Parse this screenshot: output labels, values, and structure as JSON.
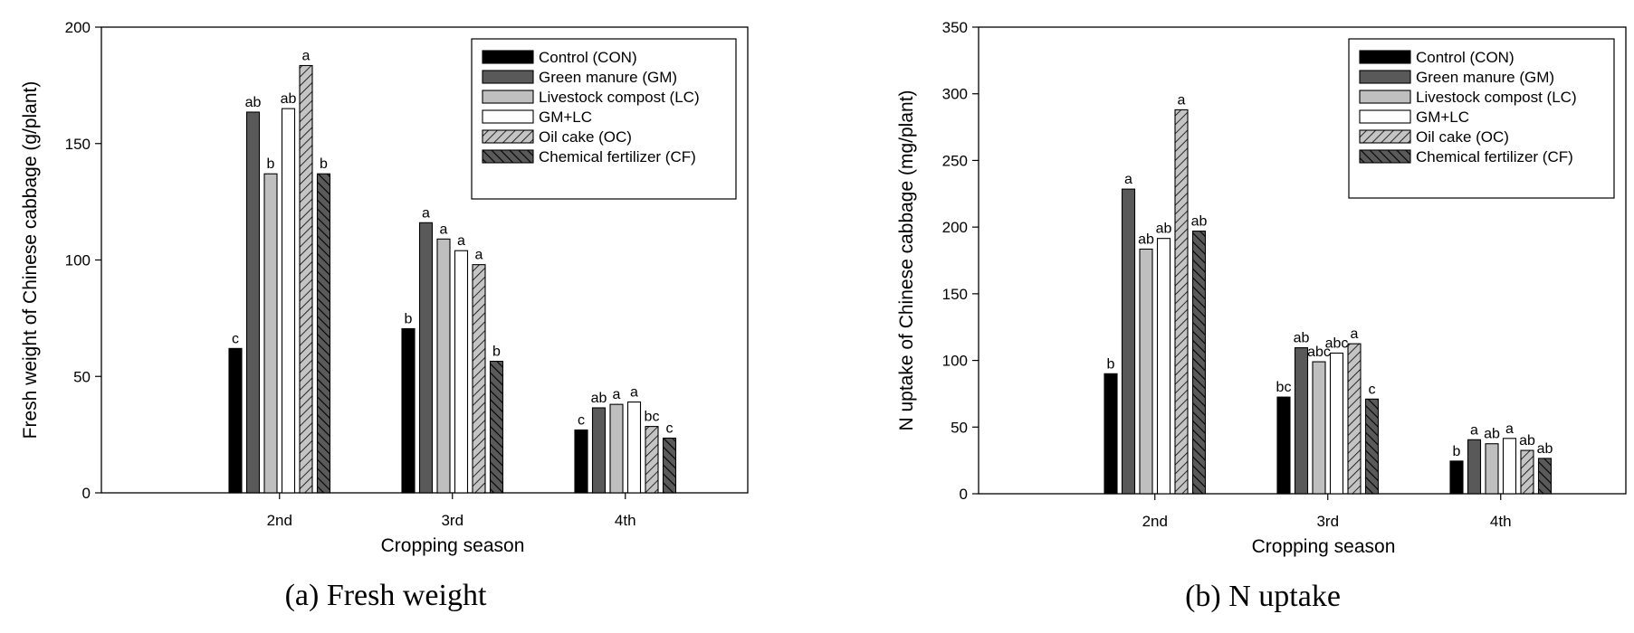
{
  "colors": {
    "CON": "#000000",
    "GM": "#595959",
    "LC": "#bfbfbf",
    "GMLC": "#ffffff",
    "OC": "#bfbfbf",
    "CF": "#595959"
  },
  "chart_data": [
    {
      "type": "bar",
      "caption": "(a) Fresh weight",
      "xlabel": "Cropping season",
      "ylabel": "Fresh weight of Chinese cabbage (g/plant)",
      "ylim": [
        0,
        200
      ],
      "yticks": [
        "0",
        "50",
        "100",
        "150",
        "200"
      ],
      "categories": [
        "2nd",
        "3rd",
        "4th"
      ],
      "legend_position": "top-right",
      "series": [
        {
          "name": "Control (CON)",
          "key": "CON",
          "values": [
            62,
            70.5,
            27
          ],
          "labels": [
            "c",
            "b",
            "c"
          ]
        },
        {
          "name": "Green manure (GM)",
          "key": "GM",
          "values": [
            163.5,
            116,
            36.5
          ],
          "labels": [
            "ab",
            "a",
            "ab"
          ]
        },
        {
          "name": "Livestock compost (LC)",
          "key": "LC",
          "values": [
            137,
            109,
            38
          ],
          "labels": [
            "b",
            "a",
            "a"
          ]
        },
        {
          "name": "GM+LC",
          "key": "GMLC",
          "values": [
            165,
            104,
            39
          ],
          "labels": [
            "ab",
            "a",
            "a"
          ]
        },
        {
          "name": "Oil cake (OC)",
          "key": "OC",
          "values": [
            183.5,
            98,
            28.5
          ],
          "labels": [
            "a",
            "a",
            "bc"
          ]
        },
        {
          "name": "Chemical fertilizer (CF)",
          "key": "CF",
          "values": [
            137,
            56.5,
            23.5
          ],
          "labels": [
            "b",
            "b",
            "c"
          ]
        }
      ]
    },
    {
      "type": "bar",
      "caption": "(b) N uptake",
      "xlabel": "Cropping season",
      "ylabel": "N uptake of Chinese cabbage (mg/plant)",
      "ylim": [
        0,
        350
      ],
      "yticks": [
        "0",
        "50",
        "100",
        "150",
        "200",
        "250",
        "300",
        "350"
      ],
      "categories": [
        "2nd",
        "3rd",
        "4th"
      ],
      "legend_position": "top-right",
      "series": [
        {
          "name": "Control (CON)",
          "key": "CON",
          "values": [
            90,
            72.5,
            24.5
          ],
          "labels": [
            "b",
            "bc",
            "b"
          ]
        },
        {
          "name": "Green manure (GM)",
          "key": "GM",
          "values": [
            228.5,
            109.5,
            40.5
          ],
          "labels": [
            "a",
            "ab",
            "a"
          ]
        },
        {
          "name": "Livestock compost (LC)",
          "key": "LC",
          "values": [
            183.5,
            99,
            37.5
          ],
          "labels": [
            "ab",
            "abc",
            "ab"
          ]
        },
        {
          "name": "GM+LC",
          "key": "GMLC",
          "values": [
            191.5,
            105.5,
            41.5
          ],
          "labels": [
            "ab",
            "abc",
            "a"
          ]
        },
        {
          "name": "Oil cake (OC)",
          "key": "OC",
          "values": [
            288,
            112.5,
            32.5
          ],
          "labels": [
            "a",
            "a",
            "ab"
          ]
        },
        {
          "name": "Chemical fertilizer (CF)",
          "key": "CF",
          "values": [
            197,
            71,
            26.5
          ],
          "labels": [
            "ab",
            "c",
            "ab"
          ]
        }
      ]
    }
  ]
}
